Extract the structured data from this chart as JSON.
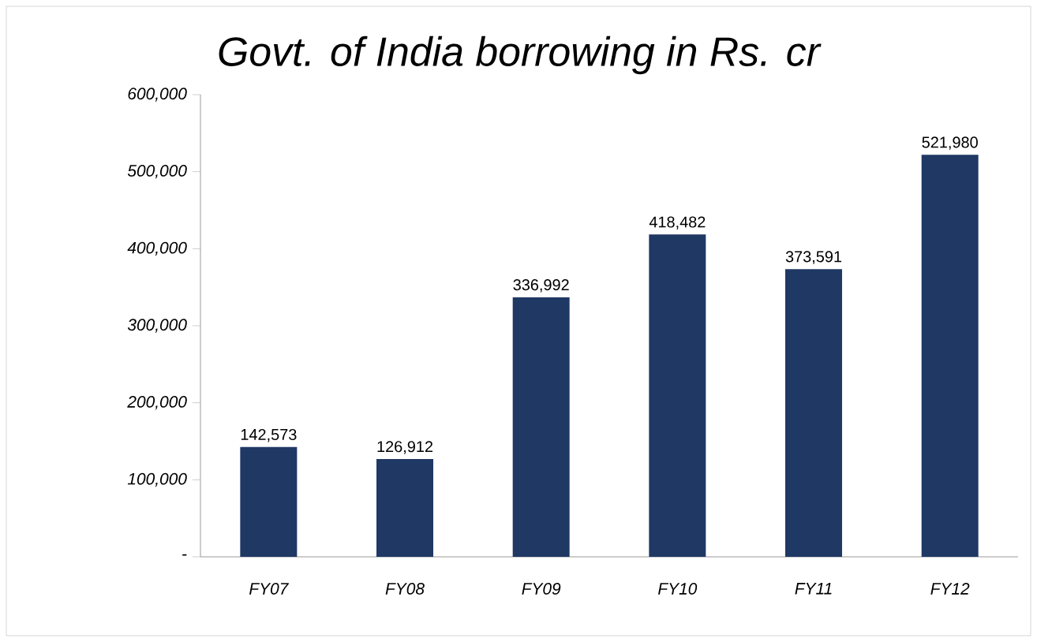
{
  "chart_data": {
    "type": "bar",
    "title": "Govt. of India borrowing in Rs. cr",
    "categories": [
      "FY07",
      "FY08",
      "FY09",
      "FY10",
      "FY11",
      "FY12"
    ],
    "values": [
      142573,
      126912,
      336992,
      418482,
      373591,
      521980
    ],
    "value_labels": [
      "142,573",
      "126,912",
      "336,992",
      "418,482",
      "373,591",
      "521,980"
    ],
    "color": "#1f3864",
    "ylim": [
      0,
      600000
    ],
    "yticks": [
      {
        "value": 0,
        "label": "-"
      },
      {
        "value": 100000,
        "label": "100,000"
      },
      {
        "value": 200000,
        "label": "200,000"
      },
      {
        "value": 300000,
        "label": "300,000"
      },
      {
        "value": 400000,
        "label": "400,000"
      },
      {
        "value": 500000,
        "label": "500,000"
      },
      {
        "value": 600000,
        "label": "600,000"
      }
    ]
  }
}
